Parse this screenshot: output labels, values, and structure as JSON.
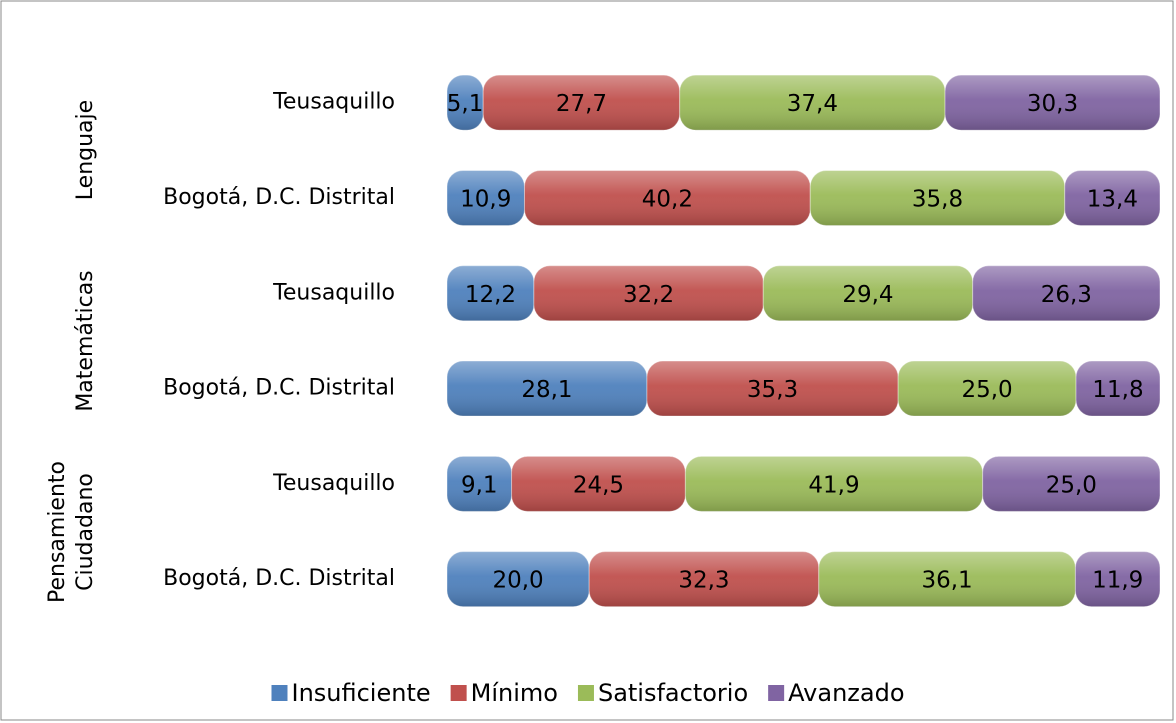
{
  "chart_data": {
    "type": "stacked-bar-horizontal",
    "groups": [
      "Lenguaje",
      "Matemáticas",
      "Pensamiento Ciudadano"
    ],
    "categories": [
      "Teusaquillo",
      "Bogotá, D.C. Distrital",
      "Teusaquillo",
      "Bogotá, D.C. Distrital",
      "Teusaquillo",
      "Bogotá, D.C. Distrital"
    ],
    "series": [
      {
        "name": "Insuficiente",
        "color": "#4f81bd",
        "values": [
          5.1,
          10.9,
          12.2,
          28.1,
          9.1,
          20.0
        ],
        "value_labels": [
          "5,1",
          "10,9",
          "12,2",
          "28,1",
          "9,1",
          "20,0"
        ]
      },
      {
        "name": "Mínimo",
        "color": "#c0504d",
        "values": [
          27.7,
          40.2,
          32.2,
          35.3,
          24.5,
          32.3
        ],
        "value_labels": [
          "27,7",
          "40,2",
          "32,2",
          "35,3",
          "24,5",
          "32,3"
        ]
      },
      {
        "name": "Satisfactorio",
        "color": "#9bbb59",
        "values": [
          37.4,
          35.8,
          29.4,
          25.0,
          41.9,
          36.1
        ],
        "value_labels": [
          "37,4",
          "35,8",
          "29,4",
          "25,0",
          "41,9",
          "36,1"
        ]
      },
      {
        "name": "Avanzado",
        "color": "#8064a2",
        "values": [
          30.3,
          13.4,
          26.3,
          11.8,
          25.0,
          11.9
        ],
        "value_labels": [
          "30,3",
          "13,4",
          "26,3",
          "11,8",
          "25,0",
          "11,9"
        ]
      }
    ],
    "legend": "bottom"
  }
}
